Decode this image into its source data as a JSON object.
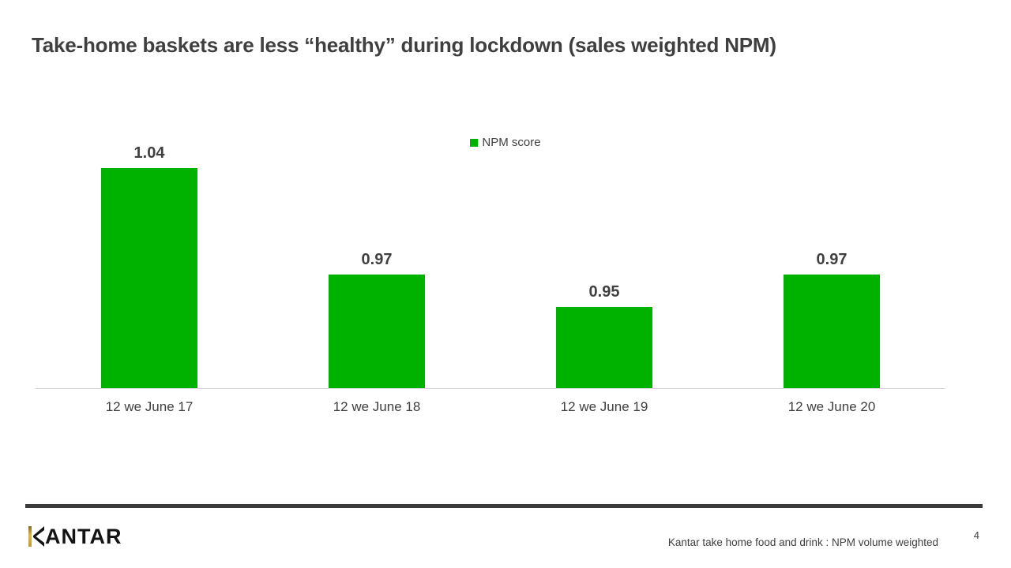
{
  "slide": {
    "title": "Take-home baskets are less “healthy” during lockdown (sales weighted NPM)",
    "footer": {
      "logo": {
        "text": "KANTAR",
        "text_after_k": "ANTAR"
      },
      "source": "Kantar take home food and drink : NPM volume weighted",
      "page_number": "4"
    }
  },
  "chart_data": {
    "type": "bar",
    "title": "",
    "categories": [
      "12 we June 17",
      "12 we June 18",
      "12 we June 19",
      "12 we June 20"
    ],
    "series": [
      {
        "name": "NPM score",
        "values": [
          1.04,
          0.97,
          0.95,
          0.97
        ]
      }
    ],
    "data_labels": true,
    "xlabel": "",
    "ylabel": "",
    "ylim": [
      0.9,
      1.05
    ],
    "y_axis_labels_visible": false,
    "grid": false,
    "legend_position": "top-center",
    "bar_color": "#00B200",
    "baseline_color": "#D9D9D9"
  },
  "colors": {
    "title_text": "#3F3F3F",
    "body_text": "#404040",
    "footer_rule": "#3B3B3B",
    "logo_gold": "#C9A136",
    "background": "#FFFFFF"
  }
}
